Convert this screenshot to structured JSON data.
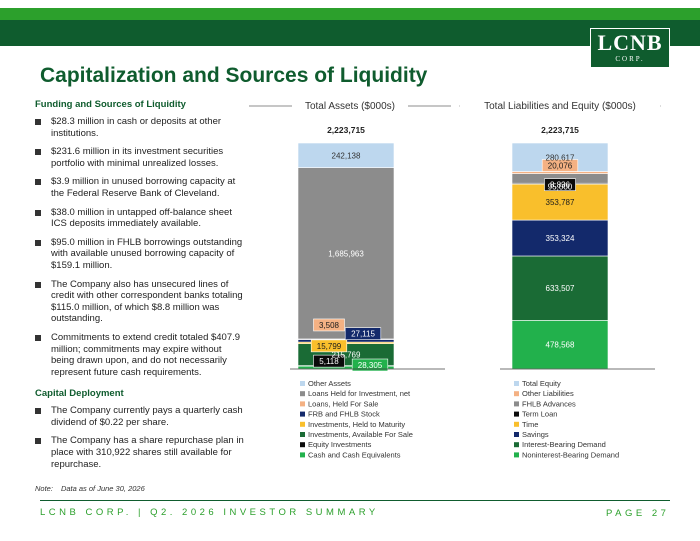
{
  "header": {
    "logo_brand": "LCNB",
    "logo_corp": "CORP."
  },
  "page_title": "Capitalization and Sources of Liquidity",
  "funding": {
    "heading": "Funding and Sources of Liquidity",
    "bullets": [
      "$28.3 million in cash or deposits at other institutions.",
      "$231.6 million in its investment securities portfolio with minimal unrealized losses.",
      "$3.9 million in unused borrowing capacity at the Federal Reserve Bank of Cleveland.",
      "$38.0 million in untapped off-balance sheet ICS deposits immediately available.",
      "$95.0 million in FHLB borrowings outstanding with available unused borrowing capacity of $159.1 million.",
      "The Company also has unsecured lines of credit with other correspondent banks totaling $115.0 million, of which $8.8 million was outstanding.",
      "Commitments to extend credit totaled $407.9 million; commitments may expire without being drawn upon, and do not necessarily represent future cash requirements."
    ]
  },
  "capital_deployment": {
    "heading": "Capital Deployment",
    "bullets": [
      "The Company currently pays a quarterly cash dividend of $0.22 per share.",
      "The Company has a share repurchase plan in place with 310,922 shares still available for repurchase."
    ]
  },
  "note": {
    "label": "Note:",
    "text": "Data as of June 30, 2026"
  },
  "footer": {
    "left": "LCNB CORP. | Q2. 2026 INVESTOR SUMMARY",
    "right": "PAGE 27"
  },
  "chart_data": [
    {
      "type": "bar",
      "stacked": true,
      "title": "Total Assets ($000s)",
      "total_label": "2,223,715",
      "total": 2223715,
      "legend_position": "bottom",
      "series": [
        {
          "name": "Cash and Cash Equivalents",
          "value": 28305,
          "label": "28,305",
          "color": "#22b14c",
          "text_color": "#ffffff"
        },
        {
          "name": "Equity Investments",
          "value": 5118,
          "label": "5,118",
          "color": "#0b0b0b",
          "text_color": "#ffffff"
        },
        {
          "name": "Investments, Available For Sale",
          "value": 215769,
          "label": "215,769",
          "color": "#1a6b35",
          "text_color": "#ffffff"
        },
        {
          "name": "Investments, Held to Maturity",
          "value": 15799,
          "label": "15,799",
          "color": "#f9bf2c",
          "text_color": "#1a1a1a"
        },
        {
          "name": "FRB and FHLB Stock",
          "value": 27115,
          "label": "27,115",
          "color": "#13296b",
          "text_color": "#ffffff"
        },
        {
          "name": "Loans, Held For Sale",
          "value": 3508,
          "label": "3,508",
          "color": "#f4b183",
          "text_color": "#1a1a1a"
        },
        {
          "name": "Loans Held for Investment, net",
          "value": 1685963,
          "label": "1,685,963",
          "color": "#8c8c8c",
          "text_color": "#ffffff"
        },
        {
          "name": "Other Assets",
          "value": 242138,
          "label": "242,138",
          "color": "#bdd7ee",
          "text_color": "#333333"
        }
      ]
    },
    {
      "type": "bar",
      "stacked": true,
      "title": "Total Liabilities and Equity ($000s)",
      "total_label": "2,223,715",
      "total": 2223715,
      "legend_position": "bottom",
      "series": [
        {
          "name": "Noninterest-Bearing Demand",
          "value": 478568,
          "label": "478,568",
          "color": "#22b14c",
          "text_color": "#ffffff"
        },
        {
          "name": "Interest-Bearing Demand",
          "value": 633507,
          "label": "633,507",
          "color": "#1a6b35",
          "text_color": "#ffffff"
        },
        {
          "name": "Savings",
          "value": 353324,
          "label": "353,324",
          "color": "#13296b",
          "text_color": "#ffffff"
        },
        {
          "name": "Time",
          "value": 353787,
          "label": "353,787",
          "color": "#f9bf2c",
          "text_color": "#1a1a1a"
        },
        {
          "name": "Term Loan",
          "value": 8836,
          "label": "8,836",
          "color": "#0b0b0b",
          "text_color": "#ffffff"
        },
        {
          "name": "FHLB Advances",
          "value": 95000,
          "label": "95,000",
          "color": "#8c8c8c",
          "text_color": "#ffffff"
        },
        {
          "name": "Other Liabilities",
          "value": 20076,
          "label": "20,076",
          "color": "#f4b183",
          "text_color": "#1a1a1a"
        },
        {
          "name": "Total Equity",
          "value": 280617,
          "label": "280,617",
          "color": "#bdd7ee",
          "text_color": "#333333"
        }
      ]
    }
  ]
}
